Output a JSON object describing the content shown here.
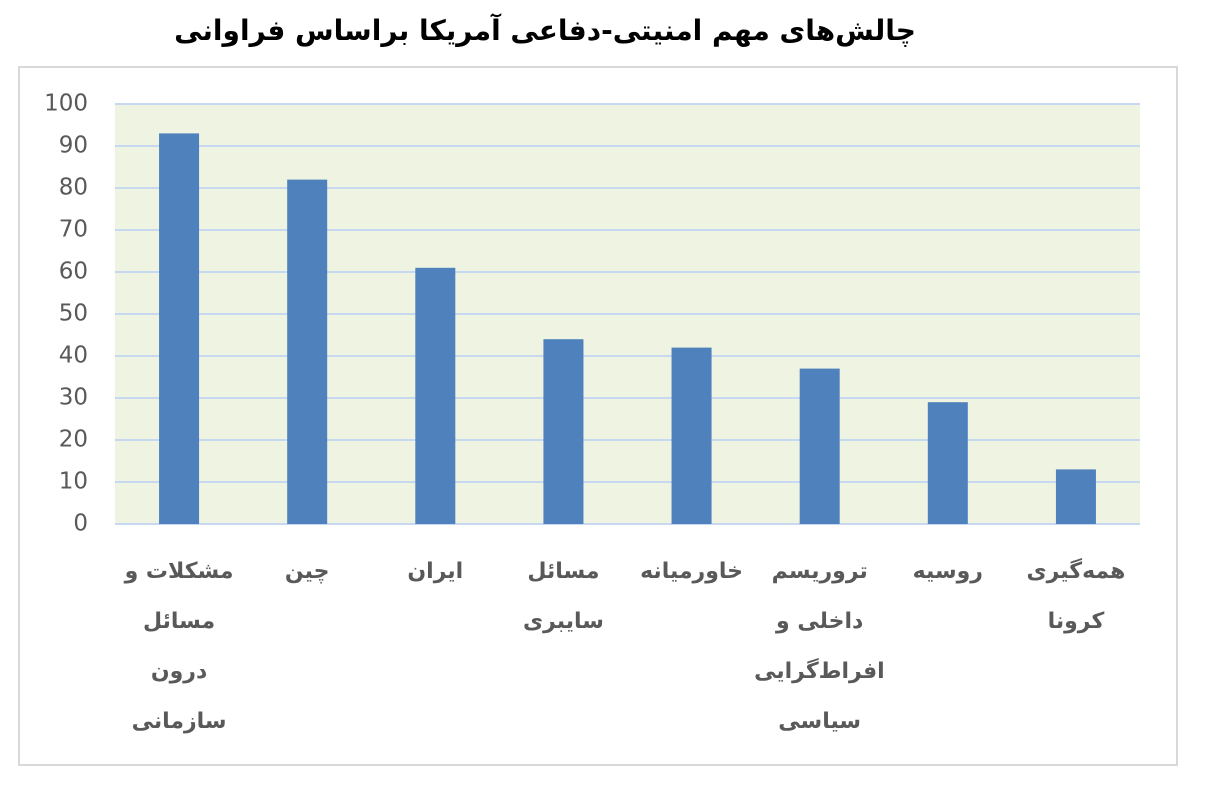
{
  "chart_data": {
    "type": "bar",
    "title": "چالش‌های مهم امنیتی-دفاعی آمریکا براساس فراوانی",
    "categories": [
      "مشکلات و\nمسائل\nدرون\nسازمانی",
      "چین",
      "ایران",
      "مسائل\nسایبری",
      "خاورمیانه",
      "تروریسم\nداخلی و\nافراط‌گرایی\nسیاسی",
      "روسیه",
      "همه‌گیری\nکرونا"
    ],
    "values": [
      93,
      82,
      61,
      44,
      42,
      37,
      29,
      13
    ],
    "color": "#4f81bd",
    "ylim": [
      0,
      100
    ],
    "yticks": [
      0,
      10,
      20,
      30,
      40,
      50,
      60,
      70,
      80,
      90,
      100
    ],
    "grid": true
  }
}
